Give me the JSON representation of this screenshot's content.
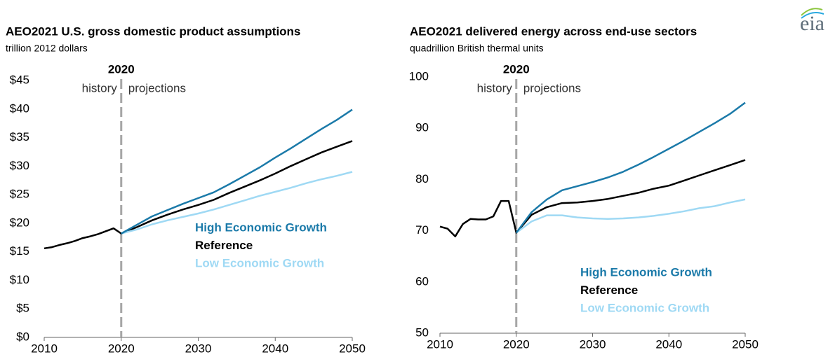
{
  "logo": "eia",
  "chart_data": [
    {
      "type": "line",
      "title": "AEO2021 U.S. gross domestic product assumptions",
      "subtitle": "trillion 2012 dollars",
      "divider": {
        "x": 2020,
        "label": "2020",
        "left": "history",
        "right": "projections"
      },
      "x": [
        2010,
        2011,
        2012,
        2013,
        2014,
        2015,
        2016,
        2017,
        2018,
        2019,
        2020,
        2022,
        2024,
        2026,
        2028,
        2030,
        2032,
        2034,
        2036,
        2038,
        2040,
        2042,
        2044,
        2046,
        2048,
        2050
      ],
      "series": [
        {
          "name": "High Economic Growth",
          "color": "#1b7aa9",
          "values": [
            null,
            null,
            null,
            null,
            null,
            null,
            null,
            null,
            null,
            null,
            18.2,
            19.7,
            21.2,
            22.3,
            23.4,
            24.4,
            25.4,
            26.8,
            28.3,
            29.8,
            31.5,
            33.1,
            34.8,
            36.5,
            38.1,
            39.9
          ]
        },
        {
          "name": "Reference",
          "color": "#000000",
          "values": [
            15.6,
            15.8,
            16.2,
            16.5,
            16.9,
            17.4,
            17.7,
            18.1,
            18.6,
            19.1,
            18.2,
            19.3,
            20.5,
            21.5,
            22.4,
            23.2,
            24.1,
            25.3,
            26.4,
            27.5,
            28.7,
            30.0,
            31.2,
            32.4,
            33.4,
            34.4
          ]
        },
        {
          "name": "Low Economic Growth",
          "color": "#9fd9f4",
          "values": [
            null,
            null,
            null,
            null,
            null,
            null,
            null,
            null,
            null,
            null,
            18.2,
            18.9,
            19.8,
            20.5,
            21.1,
            21.7,
            22.4,
            23.2,
            24.0,
            24.8,
            25.5,
            26.2,
            27.0,
            27.7,
            28.3,
            29.0
          ]
        }
      ],
      "xlim": [
        2010,
        2050
      ],
      "xticks": [
        2010,
        2020,
        2030,
        2040,
        2050
      ],
      "ylim": [
        0,
        45
      ],
      "yticks": [
        {
          "value": 0,
          "label": "$0"
        },
        {
          "value": 5,
          "label": "$5"
        },
        {
          "value": 10,
          "label": "$10"
        },
        {
          "value": 15,
          "label": "$15"
        },
        {
          "value": 20,
          "label": "$20"
        },
        {
          "value": 25,
          "label": "$25"
        },
        {
          "value": 30,
          "label": "$30"
        },
        {
          "value": 35,
          "label": "$35"
        },
        {
          "value": 40,
          "label": "$40"
        },
        {
          "value": 45,
          "label": "$45"
        }
      ],
      "grid": false
    },
    {
      "type": "line",
      "title": "AEO2021 delivered energy across end-use sectors",
      "subtitle": "quadrillion  British thermal units",
      "divider": {
        "x": 2020,
        "label": "2020",
        "left": "history",
        "right": "projections"
      },
      "x": [
        2010,
        2011,
        2012,
        2013,
        2014,
        2015,
        2016,
        2017,
        2018,
        2019,
        2020,
        2022,
        2024,
        2026,
        2028,
        2030,
        2032,
        2034,
        2036,
        2038,
        2040,
        2042,
        2044,
        2046,
        2048,
        2050
      ],
      "series": [
        {
          "name": "High Economic Growth",
          "color": "#1b7aa9",
          "values": [
            null,
            null,
            null,
            null,
            null,
            null,
            null,
            null,
            null,
            null,
            69.6,
            73.6,
            76.1,
            77.9,
            78.7,
            79.5,
            80.4,
            81.5,
            82.9,
            84.4,
            86.0,
            87.6,
            89.3,
            91.0,
            92.8,
            95.0
          ]
        },
        {
          "name": "Reference",
          "color": "#000000",
          "values": [
            70.8,
            70.4,
            68.9,
            71.3,
            72.3,
            72.2,
            72.2,
            72.8,
            75.8,
            75.8,
            69.6,
            73.1,
            74.6,
            75.4,
            75.5,
            75.8,
            76.2,
            76.8,
            77.4,
            78.2,
            78.8,
            79.8,
            80.8,
            81.8,
            82.8,
            83.8
          ]
        },
        {
          "name": "Low Economic Growth",
          "color": "#9fd9f4",
          "values": [
            null,
            null,
            null,
            null,
            null,
            null,
            null,
            null,
            null,
            null,
            69.6,
            71.8,
            73.0,
            73.0,
            72.6,
            72.4,
            72.3,
            72.4,
            72.6,
            72.9,
            73.3,
            73.8,
            74.4,
            74.8,
            75.5,
            76.1
          ]
        }
      ],
      "xlim": [
        2010,
        2050
      ],
      "xticks": [
        2010,
        2020,
        2030,
        2040,
        2050
      ],
      "ylim": [
        50,
        100
      ],
      "yticks": [
        50,
        60,
        70,
        80,
        90,
        100
      ],
      "grid": false
    }
  ]
}
